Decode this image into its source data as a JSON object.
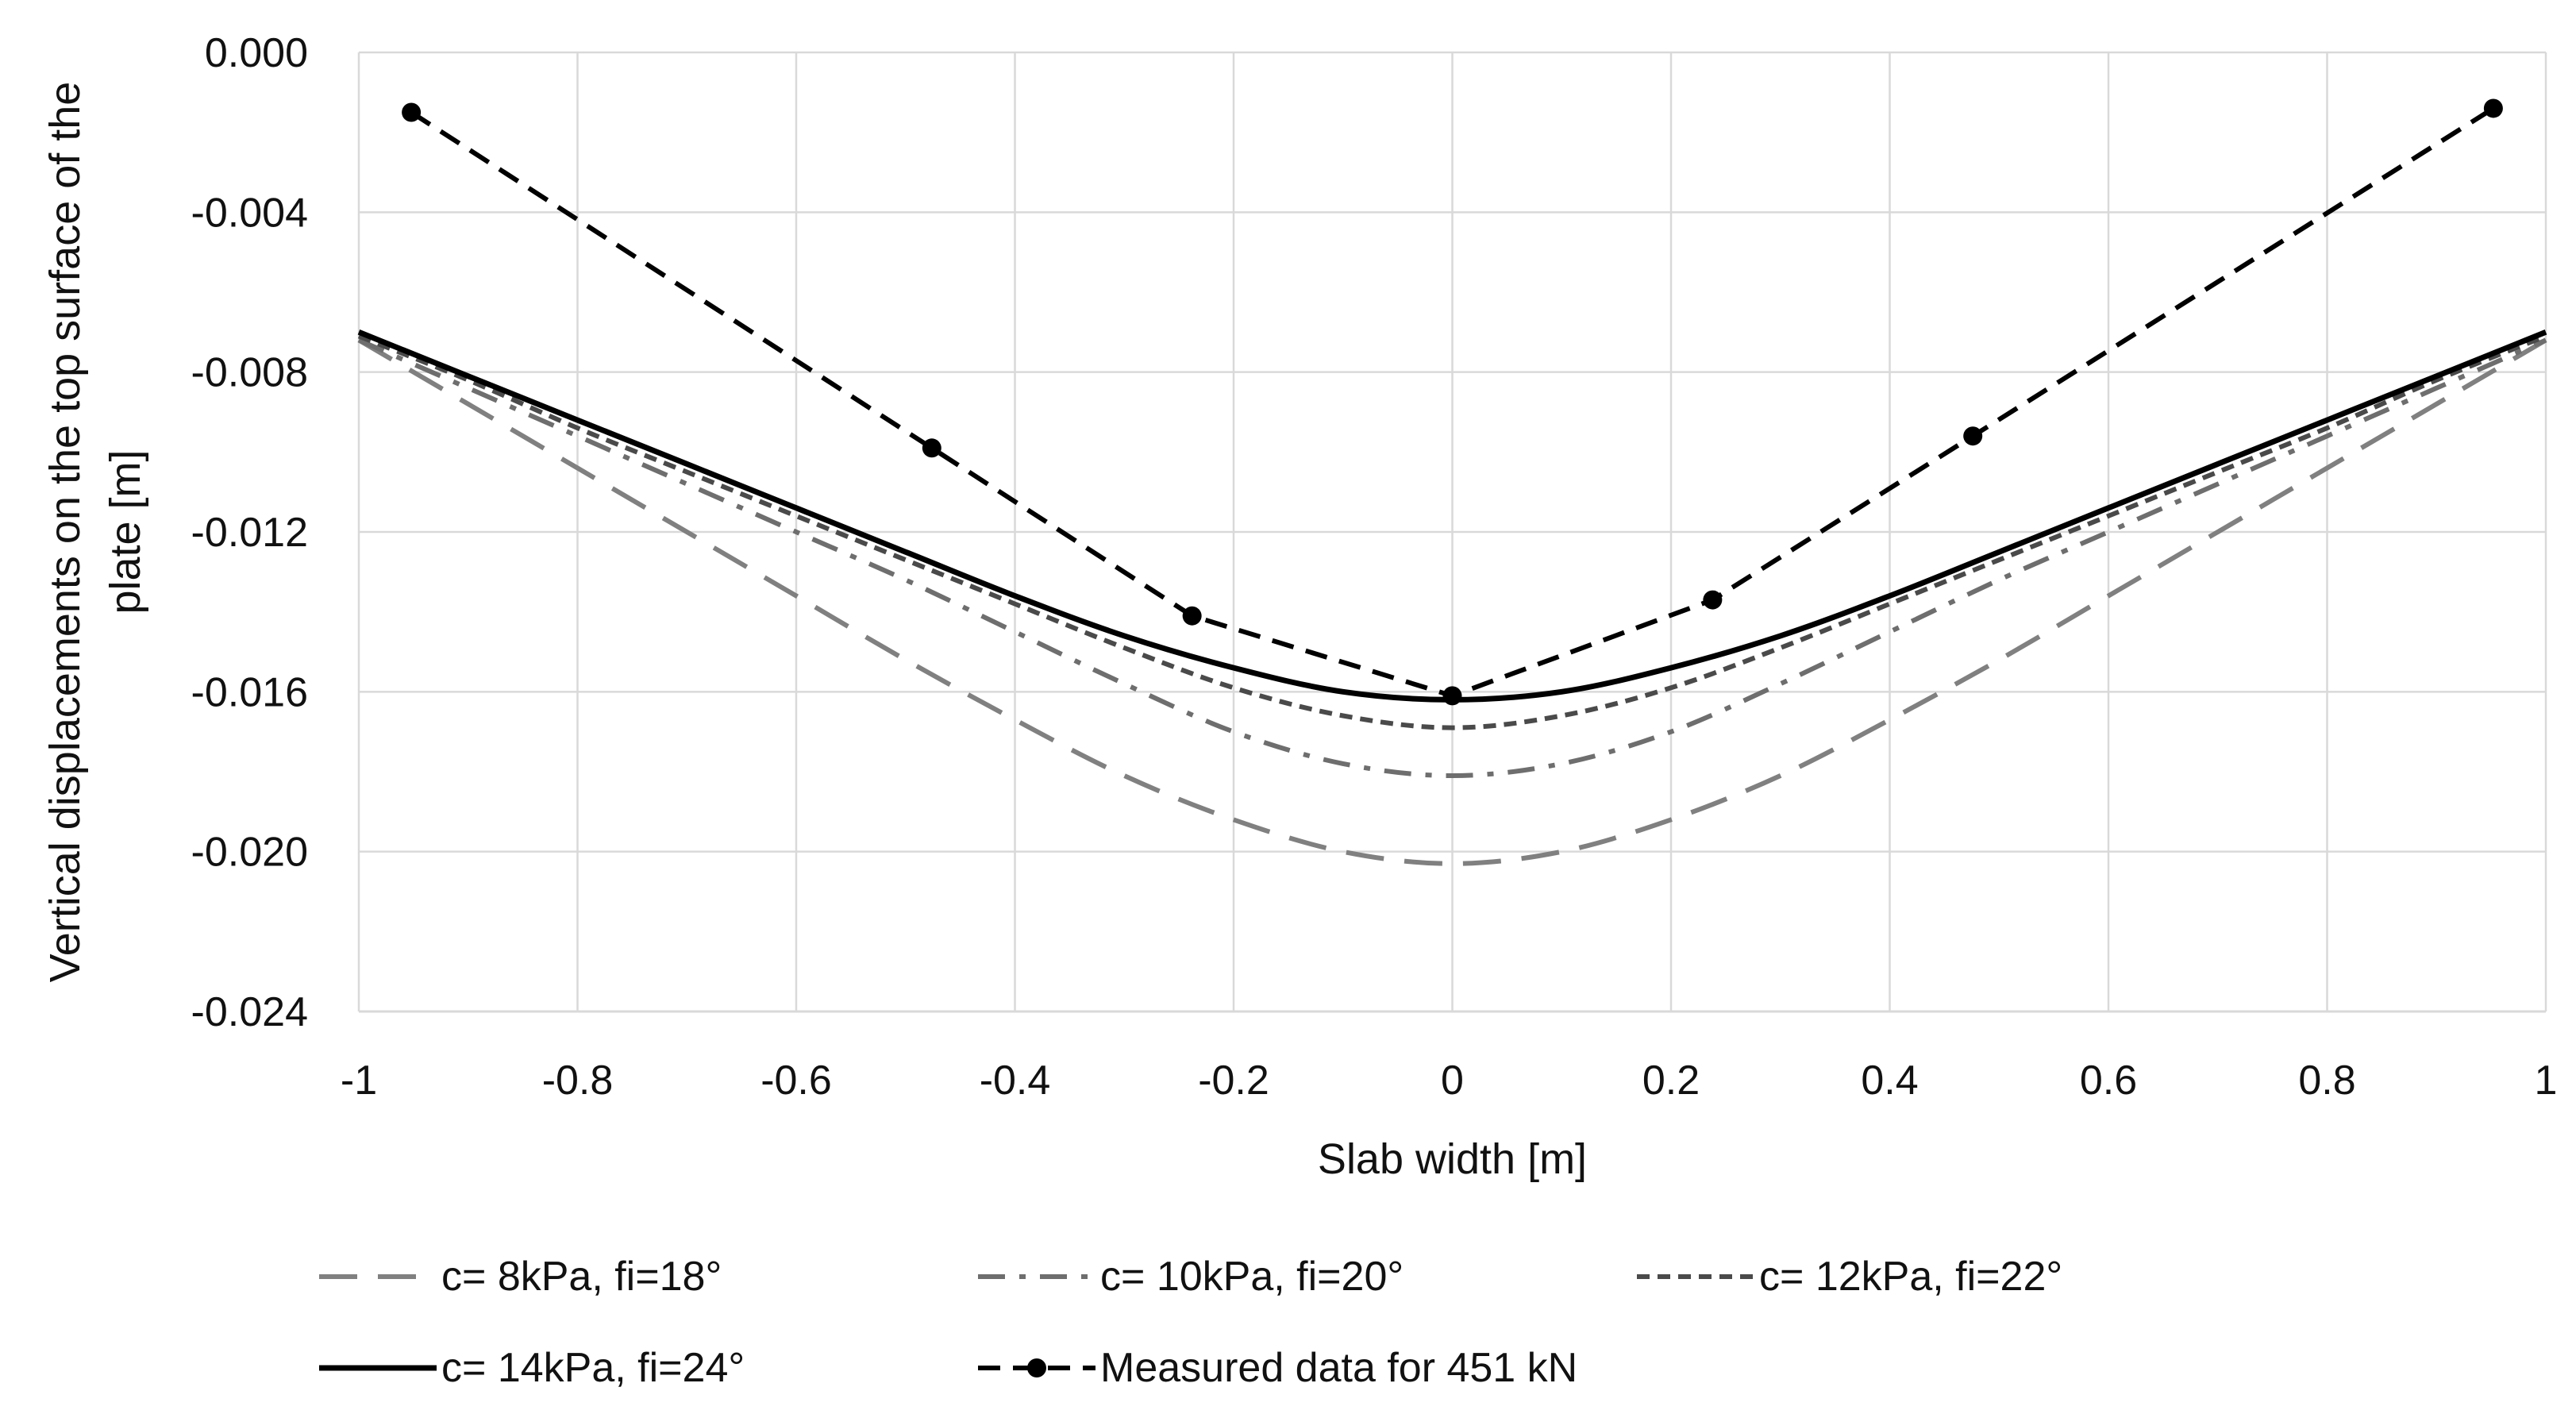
{
  "chart_data": {
    "type": "line",
    "title": "",
    "xlabel": "Slab width [m]",
    "ylabel": "Vertical displacements on the top surface of the plate [m]",
    "ylabel_lines": [
      "Vertical displacements on the top surface of the",
      "plate [m]"
    ],
    "xlim": [
      -1,
      1
    ],
    "ylim": [
      -0.024,
      0.0
    ],
    "x_ticks": [
      -1,
      -0.8,
      -0.6,
      -0.4,
      -0.2,
      0,
      0.2,
      0.4,
      0.6,
      0.8,
      1
    ],
    "x_tick_labels": [
      "-1",
      "-0.8",
      "-0.6",
      "-0.4",
      "-0.2",
      "0",
      "0.2",
      "0.4",
      "0.6",
      "0.8",
      "1"
    ],
    "y_ticks": [
      0.0,
      -0.004,
      -0.008,
      -0.012,
      -0.016,
      -0.02,
      -0.024
    ],
    "y_tick_labels": [
      "0.000",
      "-0.004",
      "-0.008",
      "-0.012",
      "-0.016",
      "-0.020",
      "-0.024"
    ],
    "grid": true,
    "legend_position": "bottom",
    "series": [
      {
        "name": "c= 8kPa, fi=18°",
        "color": "#808080",
        "dash": "long-dash",
        "x": [
          -1,
          -0.9,
          -0.8,
          -0.7,
          -0.6,
          -0.5,
          -0.4,
          -0.3,
          -0.2,
          -0.1,
          0,
          0.1,
          0.2,
          0.3,
          0.4,
          0.5,
          0.6,
          0.7,
          0.8,
          0.9,
          1
        ],
        "y": [
          -0.0072,
          -0.0088,
          -0.0104,
          -0.012,
          -0.0136,
          -0.0152,
          -0.0167,
          -0.0181,
          -0.0192,
          -0.02,
          -0.0203,
          -0.02,
          -0.0192,
          -0.0181,
          -0.0167,
          -0.0152,
          -0.0136,
          -0.012,
          -0.0104,
          -0.0088,
          -0.0072
        ]
      },
      {
        "name": "c= 10kPa, fi=20°",
        "color": "#6e6e6e",
        "dash": "dash-dot",
        "x": [
          -1,
          -0.9,
          -0.8,
          -0.7,
          -0.6,
          -0.5,
          -0.4,
          -0.3,
          -0.2,
          -0.1,
          0,
          0.1,
          0.2,
          0.3,
          0.4,
          0.5,
          0.6,
          0.7,
          0.8,
          0.9,
          1
        ],
        "y": [
          -0.0072,
          -0.0084,
          -0.0096,
          -0.0108,
          -0.012,
          -0.0132,
          -0.0145,
          -0.0158,
          -0.017,
          -0.0178,
          -0.0181,
          -0.0178,
          -0.017,
          -0.0158,
          -0.0145,
          -0.0132,
          -0.012,
          -0.0108,
          -0.0096,
          -0.0084,
          -0.0072
        ]
      },
      {
        "name": "c= 12kPa, fi=22°",
        "color": "#4a4a4a",
        "dash": "short-dash",
        "x": [
          -1,
          -0.9,
          -0.8,
          -0.7,
          -0.6,
          -0.5,
          -0.4,
          -0.3,
          -0.2,
          -0.1,
          0,
          0.1,
          0.2,
          0.3,
          0.4,
          0.5,
          0.6,
          0.7,
          0.8,
          0.9,
          1
        ],
        "y": [
          -0.0071,
          -0.0082,
          -0.0094,
          -0.0105,
          -0.0116,
          -0.0127,
          -0.0138,
          -0.0149,
          -0.0159,
          -0.0166,
          -0.0169,
          -0.0166,
          -0.0159,
          -0.0149,
          -0.0138,
          -0.0127,
          -0.0116,
          -0.0105,
          -0.0094,
          -0.0082,
          -0.0071
        ]
      },
      {
        "name": "c= 14kPa, fi=24°",
        "color": "#000000",
        "dash": "solid",
        "x": [
          -1,
          -0.9,
          -0.8,
          -0.7,
          -0.6,
          -0.5,
          -0.4,
          -0.3,
          -0.2,
          -0.1,
          0,
          0.1,
          0.2,
          0.3,
          0.4,
          0.5,
          0.6,
          0.7,
          0.8,
          0.9,
          1
        ],
        "y": [
          -0.007,
          -0.0081,
          -0.0092,
          -0.0103,
          -0.0114,
          -0.0125,
          -0.0136,
          -0.0146,
          -0.0154,
          -0.016,
          -0.0162,
          -0.016,
          -0.0154,
          -0.0146,
          -0.0136,
          -0.0125,
          -0.0114,
          -0.0103,
          -0.0092,
          -0.0081,
          -0.007
        ]
      },
      {
        "name": "Measured data for 451 kN",
        "color": "#000000",
        "dash": "dash",
        "markers": true,
        "x": [
          -0.952,
          -0.476,
          -0.238,
          0,
          0.238,
          0.476,
          0.952
        ],
        "y": [
          -0.0015,
          -0.0099,
          -0.0141,
          -0.0161,
          -0.0137,
          -0.0096,
          -0.0014
        ]
      }
    ]
  }
}
